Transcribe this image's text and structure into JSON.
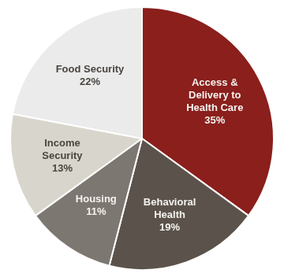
{
  "chart_data": {
    "type": "pie",
    "categories": [
      "Access & Delivery to Health Care",
      "Behavioral Health",
      "Housing",
      "Income Security",
      "Food Security"
    ],
    "values": [
      35,
      19,
      11,
      13,
      22
    ],
    "value_labels": [
      "35%",
      "19%",
      "11%",
      "13%",
      "22%"
    ],
    "colors": [
      "#8a1f1c",
      "#5b534b",
      "#7d7772",
      "#d8d6cc",
      "#ebebeb"
    ],
    "data_labels": true
  }
}
